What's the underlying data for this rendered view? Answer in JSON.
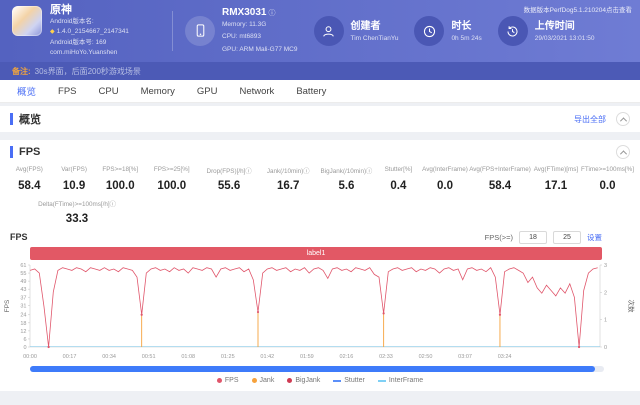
{
  "icons": {
    "diamond": "◆",
    "info": "ⓘ"
  },
  "header": {
    "version_note": "数据版本PerfDog5.1.210204点击查看",
    "app": {
      "name": "原神",
      "line1": "Android版本名:",
      "line2": "1.4.0_2154667_2147341",
      "line3": "Android版本号: 169",
      "line4": "com.miHoYo.Yuanshen"
    },
    "device": {
      "name": "RMX3031",
      "memory": "Memory: 11.3G",
      "cpu": "CPU: mt6893",
      "gpu": "GPU: ARM Mali-G77 MC9"
    },
    "creator": {
      "label": "创建者",
      "value": "Tim ChenTianYu"
    },
    "duration": {
      "label": "时长",
      "value": "0h 5m 24s"
    },
    "upload": {
      "label": "上传时间",
      "value": "29/03/2021 13:01:50"
    }
  },
  "remark": {
    "label": "备注:",
    "text": "30s界面，后面200秒游戏场景"
  },
  "tabs": [
    {
      "id": "overview",
      "label": "概览",
      "active": true
    },
    {
      "id": "fps",
      "label": "FPS",
      "active": false
    },
    {
      "id": "cpu",
      "label": "CPU",
      "active": false
    },
    {
      "id": "memory",
      "label": "Memory",
      "active": false
    },
    {
      "id": "gpu",
      "label": "GPU",
      "active": false
    },
    {
      "id": "network",
      "label": "Network",
      "active": false
    },
    {
      "id": "battery",
      "label": "Battery",
      "active": false
    }
  ],
  "overview_section": {
    "title": "概览",
    "export_label": "导出全部"
  },
  "fps_section": {
    "title": "FPS"
  },
  "stats": {
    "columns": [
      {
        "label": "Avg(FPS)",
        "value": "58.4"
      },
      {
        "label": "Var(FPS)",
        "value": "10.9"
      },
      {
        "label": "FPS>=18[%]",
        "value": "100.0"
      },
      {
        "label": "FPS>=25[%]",
        "value": "100.0"
      },
      {
        "label": "Drop(FPS)[/h]ⓘ",
        "value": "55.6"
      },
      {
        "label": "Jank(/10min)ⓘ",
        "value": "16.7"
      },
      {
        "label": "BigJank(/10min)ⓘ",
        "value": "5.6"
      },
      {
        "label": "Stutter[%]",
        "value": "0.4"
      },
      {
        "label": "Avg(InterFrame)",
        "value": "0.0"
      },
      {
        "label": "Avg(FPS+InterFrame)",
        "value": "58.4"
      },
      {
        "label": "Avg(FTime)[ms]",
        "value": "17.1"
      },
      {
        "label": "FTime>=100ms[%]",
        "value": "0.0"
      }
    ],
    "extra": {
      "label": "Delta(FTime)>=100ms[/h]ⓘ",
      "value": "33.3"
    }
  },
  "chart_controls": {
    "threshold_label": "FPS(>=)",
    "input1": "18",
    "input2": "25",
    "apply_label": "设置"
  },
  "chart_data": {
    "type": "line",
    "title": "FPS",
    "banner_label": "label1",
    "ylabel": "FPS",
    "y2label": "次数",
    "ylim": [
      0,
      61
    ],
    "yticks": [
      0,
      6,
      12,
      18,
      24,
      31,
      37,
      43,
      49,
      55,
      61
    ],
    "y2lim": [
      0,
      3
    ],
    "y2ticks": [
      0,
      1,
      2,
      3
    ],
    "x_tick_interval_s": 17,
    "x_ticks": [
      "00:00",
      "00:17",
      "00:34",
      "00:51",
      "01:08",
      "01:25",
      "01:42",
      "01:59",
      "02:16",
      "02:33",
      "02:50",
      "03:07",
      "03:24"
    ],
    "visible_range_s": [
      0,
      245
    ],
    "sample_interval_s": 2,
    "series": [
      {
        "name": "FPS",
        "color": "#e0566b",
        "values": [
          57,
          58,
          55,
          30,
          0,
          41,
          57,
          59,
          58,
          57,
          59,
          58,
          56,
          59,
          58,
          57,
          59,
          57,
          58,
          56,
          59,
          58,
          57,
          52,
          24,
          55,
          58,
          59,
          57,
          58,
          56,
          59,
          57,
          58,
          55,
          59,
          58,
          57,
          59,
          58,
          52,
          58,
          59,
          57,
          58,
          59,
          56,
          58,
          50,
          26,
          55,
          58,
          59,
          57,
          58,
          59,
          56,
          58,
          57,
          59,
          55,
          58,
          59,
          57,
          51,
          58,
          59,
          57,
          58,
          56,
          59,
          58,
          57,
          59,
          54,
          52,
          25,
          56,
          58,
          59,
          57,
          58,
          59,
          56,
          58,
          57,
          59,
          58,
          55,
          58,
          59,
          57,
          58,
          50,
          58,
          59,
          57,
          58,
          56,
          59,
          52,
          24,
          56,
          58,
          59,
          57,
          55,
          48,
          52,
          44,
          40,
          46,
          42,
          38,
          44,
          40,
          47,
          37,
          0,
          42,
          55,
          58,
          59
        ]
      }
    ],
    "jank_events_s": [
      8,
      48,
      98,
      152,
      202,
      236
    ],
    "jank_color": "#f6a23c",
    "interframe_color": "#7fd0f5",
    "legend": [
      {
        "label": "FPS",
        "color": "#e0566b",
        "marker": "dot"
      },
      {
        "label": "Jank",
        "color": "#f6a23c",
        "marker": "dot"
      },
      {
        "label": "BigJank",
        "color": "#cf3b53",
        "marker": "dot"
      },
      {
        "label": "Stutter",
        "color": "#5b8ff9",
        "marker": "line"
      },
      {
        "label": "InterFrame",
        "color": "#7fd0f5",
        "marker": "line"
      }
    ]
  }
}
